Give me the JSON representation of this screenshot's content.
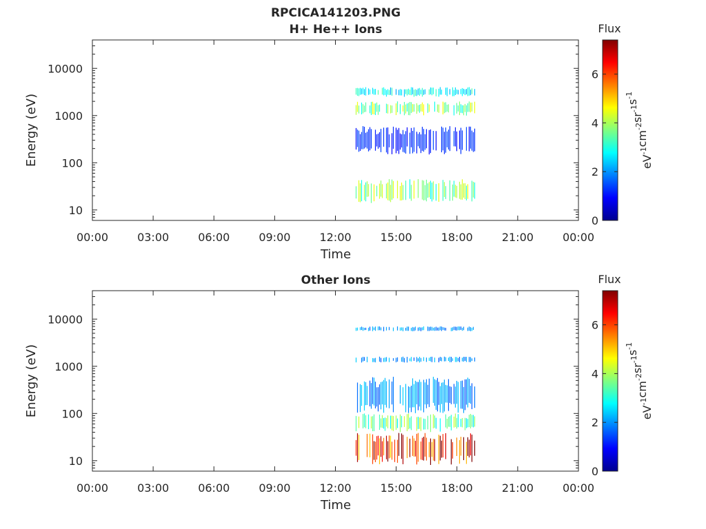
{
  "figure": {
    "file_title": "RPCICA141203.PNG"
  },
  "colorbar": {
    "label": "Flux",
    "units_base": "eV",
    "units_parts": [
      {
        "t": "eV",
        "sup": "-1"
      },
      {
        "t": "cm",
        "sup": "-2"
      },
      {
        "t": "sr",
        "sup": "-1"
      },
      {
        "t": "s",
        "sup": "-1"
      }
    ],
    "min": 0,
    "max": 7.4,
    "ticks": [
      "0",
      "2",
      "4",
      "6"
    ],
    "tick_values": [
      0,
      2,
      4,
      6
    ],
    "colormap": "jet"
  },
  "chart_data": [
    {
      "type": "heatmap",
      "title": "H+ He++ Ions",
      "xlabel": "Time",
      "ylabel": "Energy (eV)",
      "x_range_hours": [
        0,
        24
      ],
      "x_ticks": [
        "00:00",
        "03:00",
        "06:00",
        "09:00",
        "12:00",
        "15:00",
        "18:00",
        "21:00",
        "00:00"
      ],
      "x_tick_hours": [
        0,
        3,
        6,
        9,
        12,
        15,
        18,
        21,
        24
      ],
      "y_scale": "log",
      "y_range": [
        6,
        40000
      ],
      "y_ticks": [
        "10",
        "100",
        "1000",
        "10000"
      ],
      "y_tick_values": [
        10,
        100,
        1000,
        10000
      ],
      "data_interval_hours": [
        13.0,
        18.9
      ],
      "bands": [
        {
          "e_low": 14,
          "e_high": 45,
          "flux": 3.8
        },
        {
          "e_low": 1000,
          "e_high": 2000,
          "flux": 3.8
        },
        {
          "e_low": 2500,
          "e_high": 4000,
          "flux": 2.8
        },
        {
          "e_low": 150,
          "e_high": 600,
          "flux": 1.2
        }
      ]
    },
    {
      "type": "heatmap",
      "title": "Other Ions",
      "xlabel": "Time",
      "ylabel": "Energy (eV)",
      "x_range_hours": [
        0,
        24
      ],
      "x_ticks": [
        "00:00",
        "03:00",
        "06:00",
        "09:00",
        "12:00",
        "15:00",
        "18:00",
        "21:00",
        "00:00"
      ],
      "x_tick_hours": [
        0,
        3,
        6,
        9,
        12,
        15,
        18,
        21,
        24
      ],
      "y_scale": "log",
      "y_range": [
        6,
        40000
      ],
      "y_ticks": [
        "10",
        "100",
        "1000",
        "10000"
      ],
      "y_tick_values": [
        10,
        100,
        1000,
        10000
      ],
      "data_interval_hours": [
        13.0,
        18.9
      ],
      "bands": [
        {
          "e_low": 8,
          "e_high": 40,
          "flux": 6.5
        },
        {
          "e_low": 40,
          "e_high": 100,
          "flux": 3.5
        },
        {
          "e_low": 100,
          "e_high": 600,
          "flux": 2.0
        },
        {
          "e_low": 1200,
          "e_high": 1600,
          "flux": 2.0
        },
        {
          "e_low": 5500,
          "e_high": 7000,
          "flux": 2.0
        }
      ]
    }
  ]
}
